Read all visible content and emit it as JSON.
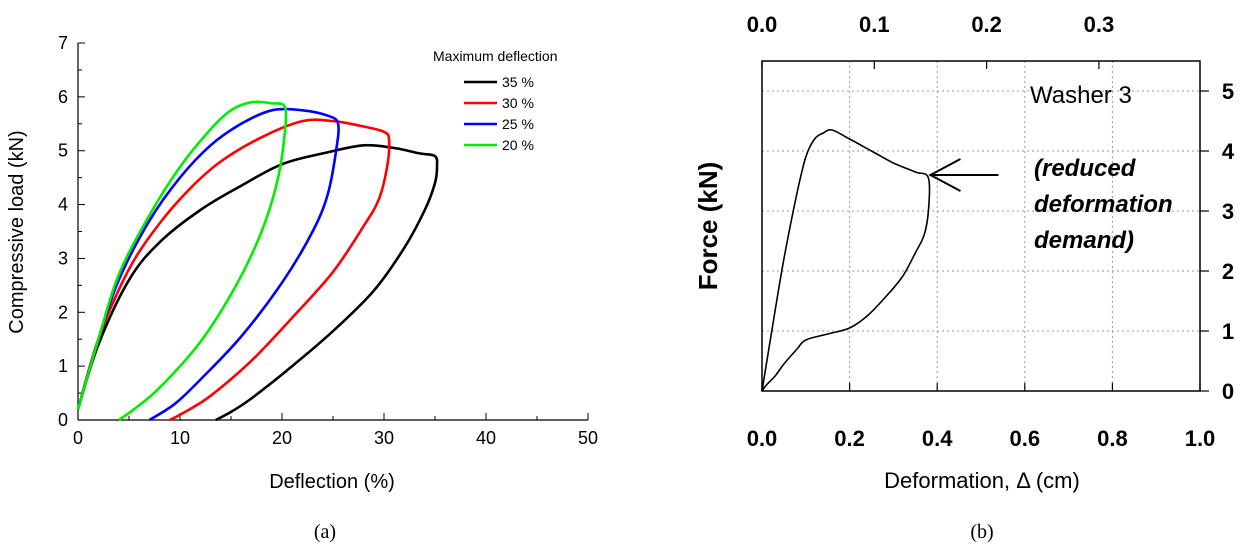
{
  "chart_data": [
    {
      "panel_label": "(a)",
      "type": "line",
      "xlabel": "Deflection (%)",
      "ylabel": "Compressive load (kN)",
      "xlim": [
        0,
        50
      ],
      "ylim": [
        0,
        7
      ],
      "xticks": [
        0,
        10,
        20,
        30,
        40,
        50
      ],
      "yticks": [
        0,
        1,
        2,
        3,
        4,
        5,
        6,
        7
      ],
      "grid": false,
      "legend_title": "Maximum deflection",
      "legend_position": "top-right",
      "series": [
        {
          "name": "35 %",
          "color": "#000000",
          "x": [
            0,
            2,
            5,
            8,
            12,
            16,
            20,
            24,
            28,
            31,
            33.5,
            35,
            35.2,
            35.0,
            34.0,
            32,
            29,
            25,
            21,
            17,
            15,
            13.5
          ],
          "y": [
            0.2,
            1.4,
            2.6,
            3.3,
            3.9,
            4.35,
            4.75,
            4.95,
            5.1,
            5.05,
            4.95,
            4.9,
            4.7,
            4.4,
            3.9,
            3.2,
            2.4,
            1.65,
            1.0,
            0.4,
            0.15,
            0
          ]
        },
        {
          "name": "30 %",
          "color": "#ff0000",
          "x": [
            0,
            2,
            5,
            8,
            11,
            14,
            18,
            22,
            25,
            28,
            30,
            30.5,
            30.3,
            29.5,
            28,
            25,
            21,
            17,
            13,
            10.5,
            9
          ],
          "y": [
            0.2,
            1.5,
            2.8,
            3.65,
            4.3,
            4.8,
            5.25,
            5.55,
            5.55,
            5.45,
            5.35,
            5.2,
            4.7,
            4.1,
            3.6,
            2.75,
            1.9,
            1.1,
            0.45,
            0.15,
            0
          ]
        },
        {
          "name": "25 %",
          "color": "#0000ff",
          "x": [
            0,
            2,
            4,
            7,
            10,
            13,
            16,
            19,
            22,
            24.5,
            25.5,
            25.3,
            24.5,
            23,
            20,
            16,
            12,
            9.5,
            7
          ],
          "y": [
            0.2,
            1.5,
            2.6,
            3.7,
            4.5,
            5.1,
            5.5,
            5.75,
            5.75,
            5.65,
            5.5,
            5.0,
            4.2,
            3.5,
            2.55,
            1.55,
            0.75,
            0.3,
            0
          ]
        },
        {
          "name": "20 %",
          "color": "#00ee00",
          "x": [
            0,
            2,
            4,
            7,
            10,
            13,
            15,
            17,
            19,
            20.3,
            20.2,
            19.5,
            18,
            15.5,
            12,
            8,
            5.5,
            4
          ],
          "y": [
            0.2,
            1.5,
            2.7,
            3.8,
            4.7,
            5.4,
            5.75,
            5.9,
            5.88,
            5.8,
            5.2,
            4.4,
            3.5,
            2.5,
            1.45,
            0.6,
            0.2,
            0
          ]
        }
      ]
    },
    {
      "panel_label": "(b)",
      "type": "line",
      "xlabel": "Deformation, Δ (cm)",
      "ylabel": "Force (kN)",
      "xlim": [
        0,
        1.0
      ],
      "ylim": [
        0,
        5.5
      ],
      "xticks": [
        "0.0",
        "0.2",
        "0.4",
        "0.6",
        "0.8",
        "1.0"
      ],
      "top_xticks": [
        "0.0",
        "0.1",
        "0.2",
        "0.3"
      ],
      "top_xlim": [
        0,
        0.39
      ],
      "yticks": [
        "0",
        "1",
        "2",
        "3",
        "4",
        "5"
      ],
      "yaxis_side": "right",
      "grid": true,
      "annotation": {
        "title": "Washer 3",
        "lines": [
          "(reduced",
          "deformation",
          "demand)"
        ],
        "arrow_target": [
          0.38,
          3.6
        ]
      },
      "series": [
        {
          "color": "#000000",
          "x": [
            0.0,
            0.02,
            0.05,
            0.08,
            0.1,
            0.12,
            0.14,
            0.16,
            0.2,
            0.25,
            0.3,
            0.35,
            0.38,
            0.38,
            0.37,
            0.35,
            0.32,
            0.28,
            0.24,
            0.2,
            0.15,
            0.1,
            0.08,
            0.05,
            0.03,
            0.01,
            0.0
          ],
          "y": [
            0.0,
            0.9,
            2.2,
            3.3,
            3.9,
            4.2,
            4.3,
            4.35,
            4.2,
            4.0,
            3.8,
            3.65,
            3.55,
            3.0,
            2.6,
            2.3,
            1.9,
            1.55,
            1.25,
            1.05,
            0.95,
            0.85,
            0.7,
            0.45,
            0.25,
            0.1,
            0.0
          ]
        }
      ]
    }
  ]
}
